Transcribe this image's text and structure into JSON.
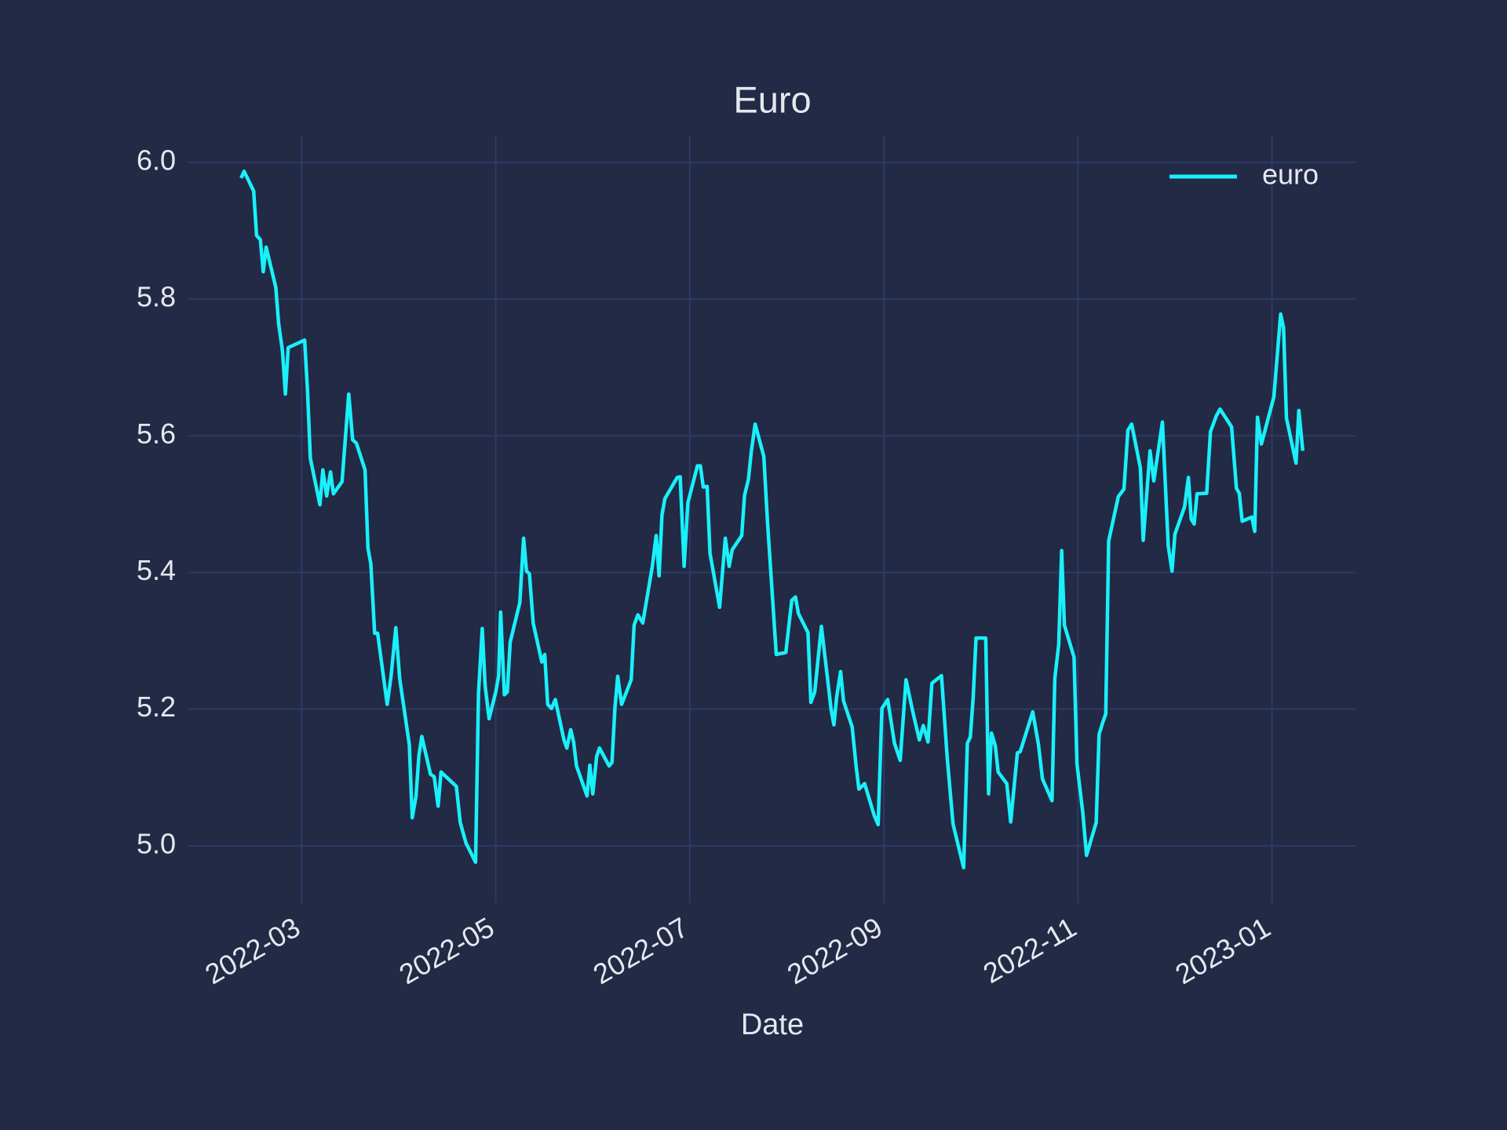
{
  "chart_data": {
    "type": "line",
    "title": "Euro",
    "xlabel": "Date",
    "legend": "upper right",
    "grid": true,
    "xlim": [
      1.832,
      13.861
    ],
    "ylim": [
      4.916,
      6.039
    ],
    "xticks": [
      {
        "value": 3,
        "label": "2022-03"
      },
      {
        "value": 5,
        "label": "2022-05"
      },
      {
        "value": 7,
        "label": "2022-07"
      },
      {
        "value": 9,
        "label": "2022-09"
      },
      {
        "value": 11,
        "label": "2022-11"
      },
      {
        "value": 13,
        "label": "2023-01"
      }
    ],
    "yticks": [
      {
        "value": 5,
        "label": "5.0"
      },
      5.2,
      5.4,
      5.6,
      5.8,
      {
        "value": 6,
        "label": "6.0"
      }
    ],
    "x": [
      2.376,
      2.406,
      2.505,
      2.535,
      2.574,
      2.604,
      2.634,
      2.733,
      2.762,
      2.802,
      2.832,
      2.861,
      3.03,
      3.059,
      3.089,
      3.188,
      3.218,
      3.257,
      3.297,
      3.327,
      3.416,
      3.485,
      3.525,
      3.564,
      3.653,
      3.683,
      3.713,
      3.752,
      3.782,
      3.881,
      3.921,
      3.97,
      4.01,
      4.109,
      4.139,
      4.178,
      4.208,
      4.238,
      4.327,
      4.366,
      4.406,
      4.436,
      4.594,
      4.634,
      4.693,
      4.792,
      4.822,
      4.861,
      4.891,
      4.931,
      5.0,
      5.03,
      5.05,
      5.089,
      5.119,
      5.149,
      5.248,
      5.287,
      5.317,
      5.347,
      5.386,
      5.475,
      5.505,
      5.535,
      5.574,
      5.614,
      5.703,
      5.733,
      5.772,
      5.802,
      5.832,
      5.941,
      5.97,
      6.0,
      6.04,
      6.069,
      6.168,
      6.198,
      6.228,
      6.257,
      6.297,
      6.396,
      6.426,
      6.465,
      6.515,
      6.614,
      6.653,
      6.683,
      6.713,
      6.743,
      6.871,
      6.901,
      6.941,
      6.98,
      7.079,
      7.109,
      7.139,
      7.178,
      7.208,
      7.307,
      7.366,
      7.406,
      7.436,
      7.535,
      7.564,
      7.604,
      7.634,
      7.673,
      7.762,
      7.802,
      7.891,
      7.99,
      8.05,
      8.089,
      8.119,
      8.218,
      8.248,
      8.287,
      8.356,
      8.416,
      8.455,
      8.485,
      8.515,
      8.554,
      8.584,
      8.673,
      8.713,
      8.743,
      8.802,
      8.901,
      8.941,
      8.98,
      9.04,
      9.109,
      9.168,
      9.228,
      9.297,
      9.366,
      9.406,
      9.455,
      9.495,
      9.594,
      9.653,
      9.713,
      9.822,
      9.861,
      9.891,
      9.921,
      9.95,
      10.05,
      10.079,
      10.109,
      10.149,
      10.178,
      10.267,
      10.307,
      10.376,
      10.406,
      10.535,
      10.594,
      10.634,
      10.733,
      10.762,
      10.802,
      10.832,
      10.861,
      10.96,
      10.99,
      11.05,
      11.089,
      11.188,
      11.218,
      11.257,
      11.287,
      11.317,
      11.416,
      11.475,
      11.515,
      11.554,
      11.644,
      11.673,
      11.743,
      11.782,
      11.871,
      11.931,
      11.97,
      12.0,
      12.099,
      12.139,
      12.168,
      12.198,
      12.228,
      12.327,
      12.366,
      12.426,
      12.465,
      12.584,
      12.634,
      12.663,
      12.693,
      12.792,
      12.822,
      12.851,
      12.891,
      13.02,
      13.089,
      13.119,
      13.149,
      13.248,
      13.277,
      13.317
    ],
    "series": [
      {
        "name": "euro",
        "color": "#19f0fa",
        "values": [
          5.977,
          5.987,
          5.958,
          5.893,
          5.887,
          5.84,
          5.876,
          5.817,
          5.764,
          5.724,
          5.661,
          5.729,
          5.74,
          5.668,
          5.567,
          5.499,
          5.55,
          5.512,
          5.547,
          5.515,
          5.533,
          5.661,
          5.594,
          5.589,
          5.55,
          5.436,
          5.412,
          5.311,
          5.311,
          5.207,
          5.248,
          5.319,
          5.245,
          5.148,
          5.041,
          5.072,
          5.132,
          5.16,
          5.105,
          5.101,
          5.058,
          5.108,
          5.087,
          5.034,
          5.004,
          4.976,
          5.222,
          5.318,
          5.234,
          5.186,
          5.225,
          5.249,
          5.342,
          5.221,
          5.225,
          5.298,
          5.356,
          5.45,
          5.402,
          5.398,
          5.326,
          5.269,
          5.28,
          5.207,
          5.201,
          5.214,
          5.155,
          5.143,
          5.17,
          5.152,
          5.117,
          5.073,
          5.118,
          5.076,
          5.131,
          5.143,
          5.117,
          5.122,
          5.201,
          5.248,
          5.207,
          5.243,
          5.323,
          5.338,
          5.326,
          5.409,
          5.454,
          5.395,
          5.484,
          5.508,
          5.539,
          5.54,
          5.409,
          5.502,
          5.556,
          5.556,
          5.525,
          5.526,
          5.428,
          5.349,
          5.45,
          5.409,
          5.433,
          5.454,
          5.513,
          5.536,
          5.577,
          5.617,
          5.57,
          5.471,
          5.28,
          5.283,
          5.359,
          5.364,
          5.34,
          5.312,
          5.21,
          5.225,
          5.321,
          5.249,
          5.201,
          5.177,
          5.219,
          5.255,
          5.212,
          5.174,
          5.118,
          5.083,
          5.091,
          5.044,
          5.031,
          5.201,
          5.214,
          5.15,
          5.125,
          5.243,
          5.197,
          5.155,
          5.176,
          5.152,
          5.238,
          5.249,
          5.129,
          5.032,
          4.968,
          5.15,
          5.159,
          5.217,
          5.304,
          5.304,
          5.076,
          5.165,
          5.146,
          5.108,
          5.091,
          5.035,
          5.136,
          5.138,
          5.196,
          5.148,
          5.098,
          5.066,
          5.245,
          5.295,
          5.432,
          5.323,
          5.276,
          5.12,
          5.049,
          4.986,
          5.034,
          5.163,
          5.181,
          5.193,
          5.446,
          5.511,
          5.522,
          5.608,
          5.617,
          5.553,
          5.447,
          5.578,
          5.534,
          5.62,
          5.439,
          5.402,
          5.456,
          5.496,
          5.539,
          5.478,
          5.471,
          5.515,
          5.516,
          5.606,
          5.629,
          5.639,
          5.613,
          5.523,
          5.516,
          5.475,
          5.481,
          5.46,
          5.627,
          5.588,
          5.657,
          5.778,
          5.758,
          5.626,
          5.56,
          5.637,
          5.578
        ]
      }
    ]
  }
}
